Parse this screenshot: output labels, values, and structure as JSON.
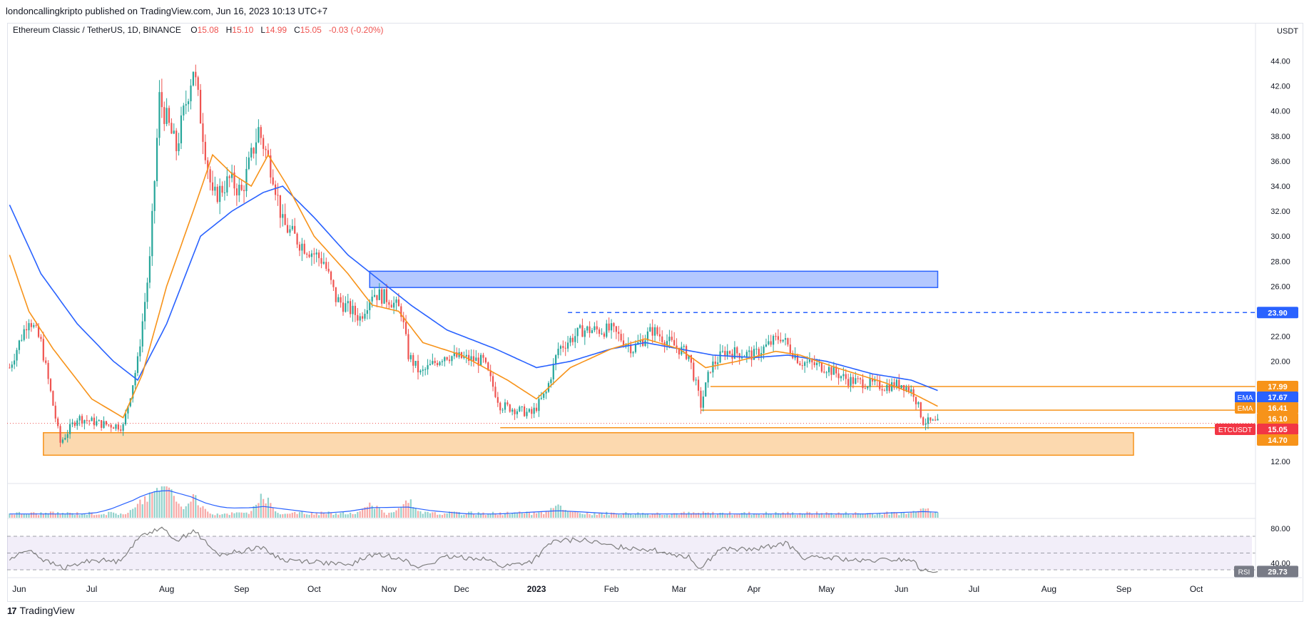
{
  "header": {
    "publisher_line": "londoncallingkripto published on TradingView.com, Jun 16, 2023 10:13 UTC+7"
  },
  "symbol": {
    "name": "Ethereum Classic / TetherUS, 1D, BINANCE",
    "o_label": "O",
    "o": "15.08",
    "h_label": "H",
    "h": "15.10",
    "l_label": "L",
    "l": "14.99",
    "c_label": "C",
    "c": "15.05",
    "change": "-0.03 (-0.20%)"
  },
  "footer": {
    "brand": "TradingView"
  },
  "colors": {
    "up": "#26a69a",
    "down": "#ef5350",
    "ema_fast": "#f7931a",
    "ema_slow": "#2962ff",
    "zone_blue": "#2962ff",
    "zone_orange": "#f7931a",
    "rsi": "#7f7f7f",
    "volume_ma": "#2962ff"
  },
  "chart_data": {
    "type": "candlestick",
    "currency": "USDT",
    "y_ticks": [
      "44.00",
      "42.00",
      "40.00",
      "38.00",
      "36.00",
      "34.00",
      "32.00",
      "30.00",
      "28.00",
      "26.00",
      "22.00",
      "20.00",
      "12.00"
    ],
    "x_ticks": [
      "Jun",
      "Jul",
      "Aug",
      "Sep",
      "Oct",
      "Nov",
      "Dec",
      "2023",
      "Feb",
      "Mar",
      "Apr",
      "May",
      "Jun",
      "Jul",
      "Aug",
      "Sep",
      "Oct"
    ],
    "ylim": [
      11,
      45.5
    ],
    "price_path": [
      [
        "2022-05-28",
        19.5
      ],
      [
        "2022-06-05",
        23.5
      ],
      [
        "2022-06-10",
        21.5
      ],
      [
        "2022-06-18",
        13.5
      ],
      [
        "2022-06-25",
        15.5
      ],
      [
        "2022-07-05",
        15.0
      ],
      [
        "2022-07-14",
        14.8
      ],
      [
        "2022-07-20",
        20.0
      ],
      [
        "2022-07-25",
        28.0
      ],
      [
        "2022-07-29",
        41.0
      ],
      [
        "2022-08-05",
        37.0
      ],
      [
        "2022-08-12",
        43.5
      ],
      [
        "2022-08-20",
        33.0
      ],
      [
        "2022-08-27",
        34.5
      ],
      [
        "2022-09-01",
        33.5
      ],
      [
        "2022-09-08",
        38.5
      ],
      [
        "2022-09-14",
        35.0
      ],
      [
        "2022-09-18",
        31.0
      ],
      [
        "2022-09-25",
        29.5
      ],
      [
        "2022-10-05",
        28.0
      ],
      [
        "2022-10-10",
        25.0
      ],
      [
        "2022-10-20",
        23.5
      ],
      [
        "2022-10-25",
        25.5
      ],
      [
        "2022-11-01",
        25.0
      ],
      [
        "2022-11-06",
        24.0
      ],
      [
        "2022-11-09",
        20.5
      ],
      [
        "2022-11-14",
        19.0
      ],
      [
        "2022-11-24",
        20.5
      ],
      [
        "2022-12-10",
        20.0
      ],
      [
        "2022-12-17",
        16.5
      ],
      [
        "2022-12-30",
        15.8
      ],
      [
        "2023-01-05",
        17.5
      ],
      [
        "2023-01-10",
        21.0
      ],
      [
        "2023-01-20",
        22.5
      ],
      [
        "2023-02-01",
        22.5
      ],
      [
        "2023-02-10",
        21.0
      ],
      [
        "2023-02-18",
        22.5
      ],
      [
        "2023-02-25",
        21.5
      ],
      [
        "2023-03-05",
        20.5
      ],
      [
        "2023-03-10",
        16.5
      ],
      [
        "2023-03-14",
        19.5
      ],
      [
        "2023-03-20",
        20.8
      ],
      [
        "2023-04-01",
        20.5
      ],
      [
        "2023-04-12",
        22.0
      ],
      [
        "2023-04-20",
        20.0
      ],
      [
        "2023-05-01",
        19.5
      ],
      [
        "2023-05-10",
        18.5
      ],
      [
        "2023-05-25",
        18.0
      ],
      [
        "2023-06-01",
        18.2
      ],
      [
        "2023-06-06",
        17.5
      ],
      [
        "2023-06-10",
        15.2
      ],
      [
        "2023-06-16",
        15.05
      ]
    ],
    "ema_fast_path": [
      [
        "2022-05-28",
        28.5
      ],
      [
        "2022-06-05",
        24.0
      ],
      [
        "2022-06-15",
        21.0
      ],
      [
        "2022-07-01",
        17.0
      ],
      [
        "2022-07-14",
        15.5
      ],
      [
        "2022-07-22",
        19.0
      ],
      [
        "2022-08-01",
        26.0
      ],
      [
        "2022-08-12",
        32.0
      ],
      [
        "2022-08-20",
        36.5
      ],
      [
        "2022-08-28",
        35.0
      ],
      [
        "2022-09-05",
        34.0
      ],
      [
        "2022-09-12",
        36.5
      ],
      [
        "2022-09-20",
        34.0
      ],
      [
        "2022-10-01",
        30.0
      ],
      [
        "2022-10-15",
        27.0
      ],
      [
        "2022-10-25",
        24.5
      ],
      [
        "2022-11-05",
        24.0
      ],
      [
        "2022-11-15",
        21.5
      ],
      [
        "2022-12-01",
        20.5
      ],
      [
        "2022-12-20",
        18.5
      ],
      [
        "2023-01-01",
        17.0
      ],
      [
        "2023-01-15",
        19.5
      ],
      [
        "2023-02-01",
        21.0
      ],
      [
        "2023-02-15",
        21.8
      ],
      [
        "2023-03-01",
        21.0
      ],
      [
        "2023-03-12",
        19.5
      ],
      [
        "2023-03-25",
        20.0
      ],
      [
        "2023-04-10",
        20.8
      ],
      [
        "2023-04-20",
        20.5
      ],
      [
        "2023-05-05",
        19.5
      ],
      [
        "2023-05-25",
        18.3
      ],
      [
        "2023-06-05",
        17.5
      ],
      [
        "2023-06-16",
        16.41
      ]
    ],
    "ema_slow_path": [
      [
        "2022-05-28",
        32.5
      ],
      [
        "2022-06-10",
        27.0
      ],
      [
        "2022-06-25",
        23.0
      ],
      [
        "2022-07-10",
        20.0
      ],
      [
        "2022-07-20",
        18.5
      ],
      [
        "2022-08-01",
        23.0
      ],
      [
        "2022-08-15",
        30.0
      ],
      [
        "2022-08-28",
        32.0
      ],
      [
        "2022-09-10",
        33.5
      ],
      [
        "2022-09-18",
        34.0
      ],
      [
        "2022-10-01",
        31.5
      ],
      [
        "2022-10-15",
        28.5
      ],
      [
        "2022-10-28",
        26.5
      ],
      [
        "2022-11-10",
        24.5
      ],
      [
        "2022-11-25",
        22.5
      ],
      [
        "2022-12-15",
        21.0
      ],
      [
        "2023-01-01",
        19.5
      ],
      [
        "2023-01-15",
        20.0
      ],
      [
        "2023-02-01",
        21.0
      ],
      [
        "2023-02-15",
        21.5
      ],
      [
        "2023-03-01",
        21.0
      ],
      [
        "2023-03-15",
        20.5
      ],
      [
        "2023-04-01",
        20.3
      ],
      [
        "2023-04-15",
        20.5
      ],
      [
        "2023-05-01",
        20.0
      ],
      [
        "2023-05-20",
        19.0
      ],
      [
        "2023-06-05",
        18.5
      ],
      [
        "2023-06-16",
        17.67
      ]
    ],
    "zones": [
      {
        "type": "rect",
        "color": "blue",
        "from": "2022-10-24",
        "to": "2023-06-16",
        "y_low": 25.9,
        "y_high": 27.2
      },
      {
        "type": "rect",
        "color": "orange",
        "from": "2022-06-11",
        "to": "2023-09-05",
        "y_low": 12.5,
        "y_high": 14.3
      }
    ],
    "levels": [
      {
        "price": 23.9,
        "from": "2023-01-14",
        "style": "dashed",
        "color": "blue"
      },
      {
        "price": 17.99,
        "from": "2023-03-14",
        "style": "solid",
        "color": "orange"
      },
      {
        "price": 16.1,
        "from": "2023-03-10",
        "style": "solid",
        "color": "orange"
      },
      {
        "price": 14.7,
        "from": "2022-12-17",
        "style": "solid",
        "color": "orange"
      }
    ],
    "price_labels": [
      {
        "price": 23.9,
        "prefix": "",
        "text": "23.90",
        "color": "blue"
      },
      {
        "price": 17.99,
        "prefix": "",
        "text": "17.99",
        "color": "orange"
      },
      {
        "price": 17.67,
        "prefix": "EMA",
        "text": "17.67",
        "color": "blue"
      },
      {
        "price": 16.41,
        "prefix": "EMA",
        "text": "16.41",
        "color": "orange"
      },
      {
        "price": 16.1,
        "prefix": "",
        "text": "16.10",
        "color": "orange"
      },
      {
        "price": 15.05,
        "prefix": "ETCUSDT",
        "text": "15.05",
        "color": "red"
      },
      {
        "price": 14.7,
        "prefix": "",
        "text": "14.70",
        "color": "orange"
      }
    ],
    "rsi": {
      "label": "RSI",
      "value": "29.73",
      "ticks": [
        "80.00",
        "40.00"
      ],
      "upper": 70,
      "lower": 30,
      "middle": 50,
      "path": [
        [
          "2022-05-28",
          42
        ],
        [
          "2022-06-05",
          55
        ],
        [
          "2022-06-12",
          40
        ],
        [
          "2022-06-20",
          32
        ],
        [
          "2022-07-01",
          42
        ],
        [
          "2022-07-12",
          40
        ],
        [
          "2022-07-22",
          72
        ],
        [
          "2022-07-29",
          80
        ],
        [
          "2022-08-06",
          65
        ],
        [
          "2022-08-12",
          78
        ],
        [
          "2022-08-22",
          48
        ],
        [
          "2022-09-01",
          52
        ],
        [
          "2022-09-08",
          58
        ],
        [
          "2022-09-18",
          42
        ],
        [
          "2022-10-01",
          40
        ],
        [
          "2022-10-15",
          35
        ],
        [
          "2022-10-25",
          48
        ],
        [
          "2022-11-06",
          45
        ],
        [
          "2022-11-12",
          32
        ],
        [
          "2022-11-25",
          45
        ],
        [
          "2022-12-10",
          44
        ],
        [
          "2022-12-18",
          34
        ],
        [
          "2022-12-30",
          40
        ],
        [
          "2023-01-08",
          64
        ],
        [
          "2023-01-20",
          66
        ],
        [
          "2023-02-01",
          58
        ],
        [
          "2023-02-15",
          55
        ],
        [
          "2023-02-25",
          50
        ],
        [
          "2023-03-05",
          45
        ],
        [
          "2023-03-10",
          32
        ],
        [
          "2023-03-18",
          55
        ],
        [
          "2023-04-01",
          54
        ],
        [
          "2023-04-14",
          62
        ],
        [
          "2023-04-22",
          44
        ],
        [
          "2023-05-05",
          44
        ],
        [
          "2023-05-15",
          40
        ],
        [
          "2023-05-28",
          42
        ],
        [
          "2023-06-05",
          42
        ],
        [
          "2023-06-10",
          28
        ],
        [
          "2023-06-16",
          29.73
        ]
      ]
    },
    "volume": {
      "note": "volume bars with moving average",
      "spikes": [
        [
          "2022-07-22",
          0.6
        ],
        [
          "2022-07-28",
          0.9
        ],
        [
          "2022-08-02",
          1.0
        ],
        [
          "2022-08-12",
          0.7
        ],
        [
          "2022-09-10",
          0.8
        ],
        [
          "2022-10-25",
          0.45
        ],
        [
          "2022-11-09",
          0.55
        ],
        [
          "2023-01-10",
          0.35
        ],
        [
          "2023-06-10",
          0.25
        ]
      ]
    }
  }
}
